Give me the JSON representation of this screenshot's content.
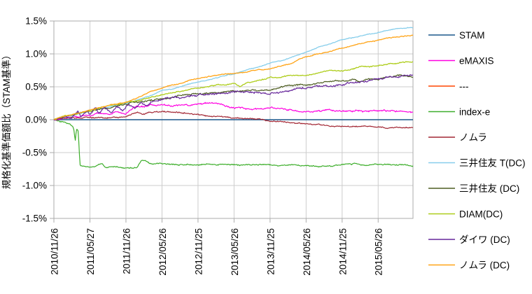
{
  "chart_data": {
    "type": "line",
    "title": "",
    "ylabel": "規格化基準価額比（STAM基準）",
    "xlabel": "",
    "ylim": [
      -1.5,
      1.5
    ],
    "y_tick_labels": [
      "1.5%",
      "1.0%",
      "0.5%",
      "0.0%",
      "-0.5%",
      "-1.0%",
      "-1.5%"
    ],
    "y_tick_values": [
      1.5,
      1.0,
      0.5,
      0.0,
      -0.5,
      -1.0,
      -1.5
    ],
    "x_tick_labels": [
      "2010/11/26",
      "2011/05/27",
      "2011/11/26",
      "2012/05/26",
      "2012/11/25",
      "2013/05/26",
      "2013/11/25",
      "2014/05/26",
      "2014/11/25",
      "2015/05/26"
    ],
    "x_tick_months": [
      0,
      6,
      12,
      18,
      24,
      30,
      36,
      42,
      48,
      54
    ],
    "x_max_months": 59.8,
    "grid": true,
    "legend_position": "right",
    "grid_color": "#cccccc",
    "border_color": "#ababab",
    "series": [
      {
        "name": "STAM",
        "color": "#1a578c",
        "noise": 0,
        "width": 1.4,
        "keypoints": [
          [
            0,
            0
          ],
          [
            59.8,
            0
          ]
        ]
      },
      {
        "name": "eMAXIS",
        "color": "#ff00e1",
        "noise": 0.014,
        "width": 1.2,
        "keypoints": [
          [
            0,
            0
          ],
          [
            1.5,
            0.02
          ],
          [
            3,
            0.06
          ],
          [
            4,
            0.03
          ],
          [
            5,
            0.07
          ],
          [
            6,
            0.05
          ],
          [
            7.5,
            0.1
          ],
          [
            9,
            0.07
          ],
          [
            10.5,
            0.12
          ],
          [
            12,
            0.1
          ],
          [
            13,
            0.17
          ],
          [
            14,
            0.21
          ],
          [
            15,
            0.19
          ],
          [
            16,
            0.22
          ],
          [
            17,
            0.2
          ],
          [
            18,
            0.22
          ],
          [
            19.5,
            0.21
          ],
          [
            21,
            0.23
          ],
          [
            22.5,
            0.21
          ],
          [
            24,
            0.22
          ],
          [
            25.5,
            0.26
          ],
          [
            26.5,
            0.24
          ],
          [
            28,
            0.22
          ],
          [
            30,
            0.19
          ],
          [
            32,
            0.17
          ],
          [
            34,
            0.16
          ],
          [
            36,
            0.17
          ],
          [
            38,
            0.15
          ],
          [
            40,
            0.14
          ],
          [
            42,
            0.14
          ],
          [
            44,
            0.15
          ],
          [
            46,
            0.16
          ],
          [
            48,
            0.15
          ],
          [
            50,
            0.13
          ],
          [
            52,
            0.13
          ],
          [
            54,
            0.13
          ],
          [
            56,
            0.12
          ],
          [
            58,
            0.12
          ],
          [
            59.8,
            0.11
          ]
        ]
      },
      {
        "name": "---",
        "color": "#ff4500",
        "noise": 0,
        "width": 1.2,
        "keypoints": []
      },
      {
        "name": "index-e",
        "color": "#3dae2b",
        "noise": 0.011,
        "width": 1.2,
        "keypoints": [
          [
            0,
            0
          ],
          [
            1.2,
            -0.03
          ],
          [
            2.6,
            -0.08
          ],
          [
            3.3,
            -0.13
          ],
          [
            3.55,
            -0.34
          ],
          [
            3.75,
            -0.15
          ],
          [
            4.05,
            -0.18
          ],
          [
            4.35,
            -0.7
          ],
          [
            5.5,
            -0.72
          ],
          [
            7,
            -0.71
          ],
          [
            8,
            -0.66
          ],
          [
            8.6,
            -0.72
          ],
          [
            9.5,
            -0.7
          ],
          [
            12,
            -0.72
          ],
          [
            13.8,
            -0.72
          ],
          [
            14.6,
            -0.61
          ],
          [
            15.2,
            -0.6
          ],
          [
            16,
            -0.65
          ],
          [
            17.5,
            -0.66
          ],
          [
            20,
            -0.67
          ],
          [
            24,
            -0.69
          ],
          [
            28,
            -0.67
          ],
          [
            33,
            -0.68
          ],
          [
            38,
            -0.69
          ],
          [
            43,
            -0.7
          ],
          [
            46,
            -0.71
          ],
          [
            49,
            -0.69
          ],
          [
            53,
            -0.67
          ],
          [
            57,
            -0.67
          ],
          [
            59.8,
            -0.68
          ]
        ]
      },
      {
        "name": "ノムラ",
        "color": "#a22633",
        "noise": 0.011,
        "width": 1.2,
        "keypoints": [
          [
            0,
            0
          ],
          [
            1.5,
            0.02
          ],
          [
            3,
            0.04
          ],
          [
            4.5,
            0.02
          ],
          [
            6,
            0.03
          ],
          [
            8,
            0.05
          ],
          [
            10,
            0.04
          ],
          [
            12,
            0.04
          ],
          [
            13,
            0.08
          ],
          [
            14,
            0.1
          ],
          [
            15,
            0.09
          ],
          [
            16,
            0.11
          ],
          [
            17,
            0.12
          ],
          [
            18,
            0.12
          ],
          [
            20,
            0.11
          ],
          [
            22,
            0.1
          ],
          [
            24,
            0.08
          ],
          [
            26,
            0.06
          ],
          [
            28,
            0.04
          ],
          [
            30,
            0.02
          ],
          [
            32,
            0.01
          ],
          [
            34,
            0
          ],
          [
            36,
            -0.02
          ],
          [
            38,
            -0.03
          ],
          [
            40,
            -0.04
          ],
          [
            42,
            -0.05
          ],
          [
            44,
            -0.07
          ],
          [
            46,
            -0.09
          ],
          [
            48,
            -0.1
          ],
          [
            50,
            -0.1
          ],
          [
            52,
            -0.11
          ],
          [
            54,
            -0.11
          ],
          [
            56,
            -0.12
          ],
          [
            58,
            -0.12
          ],
          [
            59.8,
            -0.12
          ]
        ]
      },
      {
        "name": "三井住友 T(DC)",
        "color": "#87ceeb",
        "noise": 0.007,
        "width": 1.3,
        "keypoints": [
          [
            0,
            0
          ],
          [
            2,
            0.05
          ],
          [
            4,
            0.09
          ],
          [
            6,
            0.13
          ],
          [
            9,
            0.19
          ],
          [
            12,
            0.25
          ],
          [
            15,
            0.33
          ],
          [
            18,
            0.44
          ],
          [
            21,
            0.5
          ],
          [
            24,
            0.57
          ],
          [
            27,
            0.63
          ],
          [
            30,
            0.7
          ],
          [
            33,
            0.78
          ],
          [
            36,
            0.86
          ],
          [
            39,
            0.93
          ],
          [
            42,
            1.02
          ],
          [
            45,
            1.12
          ],
          [
            48,
            1.22
          ],
          [
            51,
            1.27
          ],
          [
            54,
            1.33
          ],
          [
            57,
            1.38
          ],
          [
            59.8,
            1.41
          ]
        ]
      },
      {
        "name": "三井住友 (DC)",
        "color": "#4d5d20",
        "noise": 0.014,
        "width": 1.2,
        "keypoints": [
          [
            0,
            0
          ],
          [
            1,
            0.03
          ],
          [
            3,
            0.08
          ],
          [
            6,
            0.12
          ],
          [
            9,
            0.18
          ],
          [
            12,
            0.24
          ],
          [
            15,
            0.29
          ],
          [
            18,
            0.33
          ],
          [
            21,
            0.37
          ],
          [
            24,
            0.4
          ],
          [
            27,
            0.42
          ],
          [
            30,
            0.44
          ],
          [
            33,
            0.45
          ],
          [
            36,
            0.46
          ],
          [
            39,
            0.49
          ],
          [
            42,
            0.52
          ],
          [
            45,
            0.56
          ],
          [
            48,
            0.6
          ],
          [
            50,
            0.61
          ],
          [
            51,
            0.56
          ],
          [
            52,
            0.62
          ],
          [
            54,
            0.62
          ],
          [
            56,
            0.64
          ],
          [
            58,
            0.67
          ],
          [
            59.8,
            0.66
          ]
        ]
      },
      {
        "name": "DIAM(DC)",
        "color": "#aecd1b",
        "noise": 0.01,
        "width": 1.3,
        "keypoints": [
          [
            0,
            0
          ],
          [
            2,
            0.05
          ],
          [
            4,
            0.09
          ],
          [
            6,
            0.13
          ],
          [
            9,
            0.2
          ],
          [
            12,
            0.26
          ],
          [
            15,
            0.32
          ],
          [
            18,
            0.38
          ],
          [
            21,
            0.43
          ],
          [
            24,
            0.48
          ],
          [
            27,
            0.52
          ],
          [
            30,
            0.55
          ],
          [
            31,
            0.5
          ],
          [
            32,
            0.56
          ],
          [
            36,
            0.64
          ],
          [
            39,
            0.66
          ],
          [
            42,
            0.68
          ],
          [
            45,
            0.72
          ],
          [
            48,
            0.75
          ],
          [
            51,
            0.79
          ],
          [
            54,
            0.82
          ],
          [
            57,
            0.86
          ],
          [
            59.8,
            0.88
          ]
        ]
      },
      {
        "name": "ダイワ (DC)",
        "color": "#67279b",
        "noise": 0.017,
        "width": 1.2,
        "keypoints": [
          [
            0,
            0
          ],
          [
            2,
            0.05
          ],
          [
            3,
            0.02
          ],
          [
            4,
            0.12
          ],
          [
            4.5,
            0.05
          ],
          [
            5.5,
            0.15
          ],
          [
            6,
            0.08
          ],
          [
            7,
            0.18
          ],
          [
            7.5,
            0.1
          ],
          [
            8.5,
            0.2
          ],
          [
            9.5,
            0.12
          ],
          [
            10.5,
            0.22
          ],
          [
            11.5,
            0.15
          ],
          [
            12.5,
            0.24
          ],
          [
            13.5,
            0.18
          ],
          [
            14.5,
            0.28
          ],
          [
            15.5,
            0.22
          ],
          [
            16.5,
            0.3
          ],
          [
            18,
            0.32
          ],
          [
            20,
            0.34
          ],
          [
            22,
            0.36
          ],
          [
            24,
            0.37
          ],
          [
            26,
            0.38
          ],
          [
            28,
            0.4
          ],
          [
            30,
            0.42
          ],
          [
            33,
            0.41
          ],
          [
            36,
            0.41
          ],
          [
            39,
            0.45
          ],
          [
            42,
            0.48
          ],
          [
            45,
            0.51
          ],
          [
            48,
            0.54
          ],
          [
            51,
            0.58
          ],
          [
            54,
            0.62
          ],
          [
            57,
            0.66
          ],
          [
            59.8,
            0.7
          ]
        ]
      },
      {
        "name": "ノムラ (DC)",
        "color": "#ffa417",
        "noise": 0.008,
        "width": 1.3,
        "keypoints": [
          [
            0,
            0
          ],
          [
            2,
            0.06
          ],
          [
            4,
            0.1
          ],
          [
            6,
            0.15
          ],
          [
            9,
            0.21
          ],
          [
            12,
            0.27
          ],
          [
            14,
            0.33
          ],
          [
            16,
            0.42
          ],
          [
            18,
            0.48
          ],
          [
            19,
            0.52
          ],
          [
            21,
            0.55
          ],
          [
            24,
            0.62
          ],
          [
            26,
            0.66
          ],
          [
            28,
            0.68
          ],
          [
            30,
            0.7
          ],
          [
            33,
            0.74
          ],
          [
            36,
            0.77
          ],
          [
            38,
            0.81
          ],
          [
            40,
            0.87
          ],
          [
            41,
            0.92
          ],
          [
            43,
            0.97
          ],
          [
            45,
            1.02
          ],
          [
            48,
            1.09
          ],
          [
            51,
            1.16
          ],
          [
            54,
            1.21
          ],
          [
            57,
            1.26
          ],
          [
            59.8,
            1.29
          ]
        ]
      }
    ]
  }
}
